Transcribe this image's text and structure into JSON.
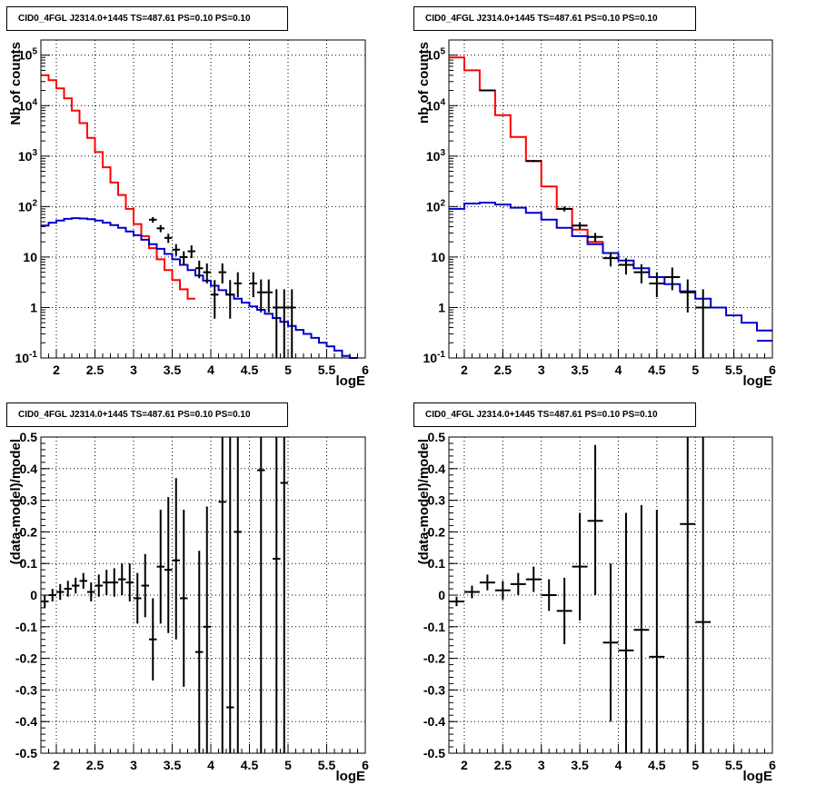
{
  "colors": {
    "data": "#000000",
    "total_model": "#ff0000",
    "background_model": "#0000cc",
    "grid": "#000000"
  },
  "chart_data": [
    {
      "type": "line",
      "panel": "top-left",
      "title": "CID0_4FGL J2314.0+1445 TS=487.61 PS=0.10 PS=0.10",
      "xlabel": "logE",
      "ylabel": "Nb of counts",
      "log_y": true,
      "grid": true,
      "xlim": [
        1.8,
        6.0
      ],
      "ylim": [
        0.1,
        200000
      ],
      "x_ticks": [
        2,
        2.5,
        3,
        3.5,
        4,
        4.5,
        5,
        5.5,
        6
      ],
      "x_tick_labels": [
        "2",
        "2.5",
        "3",
        "3.5",
        "4",
        "4.5",
        "5",
        "5.5",
        "6"
      ],
      "y_ticks": [
        0.1,
        1,
        10,
        100,
        1000,
        10000,
        100000
      ],
      "y_tick_labels": [
        "10^-1",
        "1",
        "10",
        "10^2",
        "10^3",
        "10^4",
        "10^5"
      ],
      "series": [
        {
          "kind": "step",
          "color": "#ff0000",
          "edges": [
            1.8,
            1.9,
            2.0,
            2.1,
            2.2,
            2.3,
            2.4,
            2.5,
            2.6,
            2.7,
            2.8,
            2.9,
            3.0,
            3.1,
            3.2,
            3.3,
            3.4,
            3.5,
            3.6,
            3.7,
            3.8
          ],
          "values": [
            40000,
            32000,
            22000,
            14000,
            8000,
            4500,
            2300,
            1200,
            600,
            300,
            170,
            90,
            45,
            26,
            15,
            9,
            5.5,
            3.5,
            2.3,
            1.5
          ]
        },
        {
          "kind": "step",
          "color": "#0000cc",
          "edges": [
            1.8,
            1.9,
            2.0,
            2.1,
            2.2,
            2.3,
            2.4,
            2.5,
            2.6,
            2.7,
            2.8,
            2.9,
            3.0,
            3.1,
            3.2,
            3.3,
            3.4,
            3.5,
            3.6,
            3.7,
            3.8,
            3.9,
            4.0,
            4.1,
            4.2,
            4.3,
            4.4,
            4.5,
            4.6,
            4.7,
            4.8,
            4.9,
            5.0,
            5.1,
            5.2,
            5.3,
            5.4,
            5.5,
            5.6,
            5.7,
            5.8,
            5.9
          ],
          "values": [
            42,
            48,
            53,
            57,
            59,
            58,
            56,
            53,
            48,
            43,
            38,
            32,
            27,
            22,
            18,
            14.5,
            11.5,
            9,
            7,
            5.5,
            4.3,
            3.4,
            2.7,
            2.2,
            1.8,
            1.5,
            1.25,
            1.05,
            0.9,
            0.75,
            0.62,
            0.52,
            0.43,
            0.36,
            0.3,
            0.25,
            0.2,
            0.17,
            0.14,
            0.11,
            0.09
          ]
        },
        {
          "kind": "points",
          "color": "#000000",
          "points": [
            {
              "x": 3.25,
              "y": 55,
              "ylo": 48,
              "yhi": 62,
              "xerr": 0.05
            },
            {
              "x": 3.35,
              "y": 37,
              "ylo": 31,
              "yhi": 43,
              "xerr": 0.05
            },
            {
              "x": 3.45,
              "y": 24,
              "ylo": 19,
              "yhi": 29,
              "xerr": 0.05
            },
            {
              "x": 3.55,
              "y": 14,
              "ylo": 10.5,
              "yhi": 18,
              "xerr": 0.05
            },
            {
              "x": 3.65,
              "y": 10,
              "ylo": 7,
              "yhi": 13,
              "xerr": 0.05
            },
            {
              "x": 3.75,
              "y": 13,
              "ylo": 9.5,
              "yhi": 17,
              "xerr": 0.05
            },
            {
              "x": 3.85,
              "y": 6,
              "ylo": 3.8,
              "yhi": 8.5,
              "xerr": 0.05
            },
            {
              "x": 3.95,
              "y": 5,
              "ylo": 3,
              "yhi": 7.5,
              "xerr": 0.05
            },
            {
              "x": 4.05,
              "y": 1.8,
              "ylo": 0.6,
              "yhi": 3.5,
              "xerr": 0.05
            },
            {
              "x": 4.15,
              "y": 5,
              "ylo": 3,
              "yhi": 7.5,
              "xerr": 0.05
            },
            {
              "x": 4.25,
              "y": 1.8,
              "ylo": 0.6,
              "yhi": 3.5,
              "xerr": 0.05
            },
            {
              "x": 4.35,
              "y": 3,
              "ylo": 1.6,
              "yhi": 5,
              "xerr": 0.05
            },
            {
              "x": 4.55,
              "y": 3,
              "ylo": 1.6,
              "yhi": 5,
              "xerr": 0.05
            },
            {
              "x": 4.65,
              "y": 2,
              "ylo": 0.8,
              "yhi": 3.6,
              "xerr": 0.05
            },
            {
              "x": 4.75,
              "y": 2,
              "ylo": 0.8,
              "yhi": 3.6,
              "xerr": 0.05
            },
            {
              "x": 4.85,
              "y": 1,
              "ylo": 0.1,
              "yhi": 2.3,
              "xerr": 0.05
            },
            {
              "x": 4.95,
              "y": 1,
              "ylo": 0.1,
              "yhi": 2.3,
              "xerr": 0.05
            },
            {
              "x": 5.05,
              "y": 1,
              "ylo": 0.1,
              "yhi": 2.3,
              "xerr": 0.05
            }
          ]
        }
      ]
    },
    {
      "type": "line",
      "panel": "top-right",
      "title": "CID0_4FGL J2314.0+1445 TS=487.61 PS=0.10 PS=0.10",
      "xlabel": "logE",
      "ylabel": "nb of counts",
      "log_y": true,
      "grid": true,
      "xlim": [
        1.8,
        6.0
      ],
      "ylim": [
        0.1,
        200000
      ],
      "x_ticks": [
        2,
        2.5,
        3,
        3.5,
        4,
        4.5,
        5,
        5.5,
        6
      ],
      "x_tick_labels": [
        "2",
        "2.5",
        "3",
        "3.5",
        "4",
        "4.5",
        "5",
        "5.5",
        "6"
      ],
      "y_ticks": [
        0.1,
        1,
        10,
        100,
        1000,
        10000,
        100000
      ],
      "y_tick_labels": [
        "10^-1",
        "1",
        "10",
        "10^2",
        "10^3",
        "10^4",
        "10^5"
      ],
      "series": [
        {
          "kind": "step",
          "color": "#ff0000",
          "edges": [
            1.8,
            2.0,
            2.2,
            2.4,
            2.6,
            2.8,
            3.0,
            3.2,
            3.4,
            3.6,
            3.8,
            4.0
          ],
          "values": [
            90000,
            50000,
            20000,
            6500,
            2400,
            800,
            250,
            90,
            35,
            20,
            12
          ]
        },
        {
          "kind": "step",
          "color": "#0000cc",
          "edges": [
            1.8,
            2.0,
            2.2,
            2.4,
            2.6,
            2.8,
            3.0,
            3.2,
            3.4,
            3.6,
            3.8,
            4.0,
            4.2,
            4.4,
            4.6,
            4.8,
            5.0,
            5.2,
            5.4,
            5.6,
            5.8,
            6.0
          ],
          "values": [
            90,
            115,
            120,
            110,
            95,
            75,
            55,
            38,
            26,
            18,
            12,
            8.5,
            6,
            4,
            2.9,
            2.1,
            1.5,
            1.0,
            0.7,
            0.5,
            0.35
          ]
        },
        {
          "kind": "step",
          "color": "#0000cc",
          "edges": [
            5.8,
            6.0
          ],
          "values": [
            0.22
          ]
        },
        {
          "kind": "points",
          "color": "#000000",
          "points": [
            {
              "x": 2.3,
              "y": 20000,
              "ylo": 19500,
              "yhi": 20500,
              "xerr": 0.1
            },
            {
              "x": 2.9,
              "y": 800,
              "ylo": 760,
              "yhi": 840,
              "xerr": 0.1
            },
            {
              "x": 3.3,
              "y": 90,
              "ylo": 80,
              "yhi": 100,
              "xerr": 0.1
            },
            {
              "x": 3.5,
              "y": 42,
              "ylo": 36,
              "yhi": 48,
              "xerr": 0.1
            },
            {
              "x": 3.7,
              "y": 25,
              "ylo": 20,
              "yhi": 30,
              "xerr": 0.1
            },
            {
              "x": 3.9,
              "y": 9.5,
              "ylo": 6.5,
              "yhi": 12.5,
              "xerr": 0.1
            },
            {
              "x": 4.1,
              "y": 7,
              "ylo": 4.5,
              "yhi": 9.5,
              "xerr": 0.1
            },
            {
              "x": 4.3,
              "y": 5,
              "ylo": 3,
              "yhi": 7.2,
              "xerr": 0.1
            },
            {
              "x": 4.5,
              "y": 3,
              "ylo": 1.6,
              "yhi": 5,
              "xerr": 0.1
            },
            {
              "x": 4.7,
              "y": 4,
              "ylo": 2.2,
              "yhi": 6.2,
              "xerr": 0.1
            },
            {
              "x": 4.9,
              "y": 2,
              "ylo": 0.8,
              "yhi": 3.6,
              "xerr": 0.1
            },
            {
              "x": 5.1,
              "y": 1,
              "ylo": 0.1,
              "yhi": 2.3,
              "xerr": 0.1
            }
          ]
        }
      ]
    },
    {
      "type": "scatter",
      "panel": "bottom-left",
      "title": "CID0_4FGL J2314.0+1445 TS=487.61 PS=0.10 PS=0.10",
      "xlabel": "logE",
      "ylabel": "(data-model)/model",
      "log_y": false,
      "grid": true,
      "xlim": [
        1.8,
        6.0
      ],
      "ylim": [
        -0.5,
        0.5
      ],
      "x_ticks": [
        2,
        2.5,
        3,
        3.5,
        4,
        4.5,
        5,
        5.5,
        6
      ],
      "x_tick_labels": [
        "2",
        "2.5",
        "3",
        "3.5",
        "4",
        "4.5",
        "5",
        "5.5",
        "6"
      ],
      "y_ticks": [
        -0.5,
        -0.4,
        -0.3,
        -0.2,
        -0.1,
        0,
        0.1,
        0.2,
        0.3,
        0.4,
        0.5
      ],
      "y_tick_labels": [
        "-0.5",
        "-0.4",
        "-0.3",
        "-0.2",
        "-0.1",
        "0",
        "0.1",
        "0.2",
        "0.3",
        "0.4",
        "0.5"
      ],
      "series": [
        {
          "kind": "points",
          "color": "#000000",
          "points": [
            {
              "x": 1.85,
              "y": -0.02,
              "ylo": -0.04,
              "yhi": 0.0,
              "xerr": 0.05
            },
            {
              "x": 1.95,
              "y": 0.0,
              "ylo": -0.02,
              "yhi": 0.02,
              "xerr": 0.05
            },
            {
              "x": 2.05,
              "y": 0.01,
              "ylo": -0.015,
              "yhi": 0.035,
              "xerr": 0.05
            },
            {
              "x": 2.15,
              "y": 0.02,
              "ylo": -0.005,
              "yhi": 0.045,
              "xerr": 0.05
            },
            {
              "x": 2.25,
              "y": 0.03,
              "ylo": 0.005,
              "yhi": 0.055,
              "xerr": 0.05
            },
            {
              "x": 2.35,
              "y": 0.045,
              "ylo": 0.02,
              "yhi": 0.07,
              "xerr": 0.05
            },
            {
              "x": 2.45,
              "y": 0.01,
              "ylo": -0.02,
              "yhi": 0.04,
              "xerr": 0.05
            },
            {
              "x": 2.55,
              "y": 0.03,
              "ylo": -0.005,
              "yhi": 0.065,
              "xerr": 0.05
            },
            {
              "x": 2.65,
              "y": 0.04,
              "ylo": 0.0,
              "yhi": 0.08,
              "xerr": 0.05
            },
            {
              "x": 2.75,
              "y": 0.04,
              "ylo": -0.005,
              "yhi": 0.085,
              "xerr": 0.05
            },
            {
              "x": 2.85,
              "y": 0.05,
              "ylo": 0.0,
              "yhi": 0.1,
              "xerr": 0.05
            },
            {
              "x": 2.95,
              "y": 0.04,
              "ylo": -0.02,
              "yhi": 0.1,
              "xerr": 0.05
            },
            {
              "x": 3.05,
              "y": -0.01,
              "ylo": -0.09,
              "yhi": 0.07,
              "xerr": 0.05
            },
            {
              "x": 3.15,
              "y": 0.03,
              "ylo": -0.07,
              "yhi": 0.13,
              "xerr": 0.05
            },
            {
              "x": 3.25,
              "y": -0.14,
              "ylo": -0.27,
              "yhi": -0.01,
              "xerr": 0.05
            },
            {
              "x": 3.35,
              "y": 0.09,
              "ylo": -0.09,
              "yhi": 0.27,
              "xerr": 0.05
            },
            {
              "x": 3.45,
              "y": 0.08,
              "ylo": -0.12,
              "yhi": 0.31,
              "xerr": 0.05
            },
            {
              "x": 3.55,
              "y": 0.11,
              "ylo": -0.14,
              "yhi": 0.37,
              "xerr": 0.05
            },
            {
              "x": 3.65,
              "y": -0.01,
              "ylo": -0.29,
              "yhi": 0.27,
              "xerr": 0.05
            },
            {
              "x": 3.85,
              "y": -0.18,
              "ylo": -0.5,
              "yhi": 0.14,
              "xerr": 0.05
            },
            {
              "x": 3.95,
              "y": -0.1,
              "ylo": -0.5,
              "yhi": 0.28,
              "xerr": 0.05
            },
            {
              "x": 4.15,
              "y": 0.295,
              "ylo": -0.5,
              "yhi": 0.5,
              "xerr": 0.05
            },
            {
              "x": 4.25,
              "y": -0.355,
              "ylo": -0.5,
              "yhi": 0.5,
              "xerr": 0.05
            },
            {
              "x": 4.35,
              "y": 0.2,
              "ylo": -0.5,
              "yhi": 0.5,
              "xerr": 0.05
            },
            {
              "x": 4.65,
              "y": 0.395,
              "ylo": -0.5,
              "yhi": 0.5,
              "xerr": 0.05
            },
            {
              "x": 4.85,
              "y": 0.115,
              "ylo": -0.5,
              "yhi": 0.5,
              "xerr": 0.05
            },
            {
              "x": 4.95,
              "y": 0.355,
              "ylo": -0.5,
              "yhi": 0.5,
              "xerr": 0.05
            }
          ]
        }
      ]
    },
    {
      "type": "scatter",
      "panel": "bottom-right",
      "title": "CID0_4FGL J2314.0+1445 TS=487.61 PS=0.10 PS=0.10",
      "xlabel": "logE",
      "ylabel": "(data-model)/model",
      "log_y": false,
      "grid": true,
      "xlim": [
        1.8,
        6.0
      ],
      "ylim": [
        -0.5,
        0.5
      ],
      "x_ticks": [
        2,
        2.5,
        3,
        3.5,
        4,
        4.5,
        5,
        5.5,
        6
      ],
      "x_tick_labels": [
        "2",
        "2.5",
        "3",
        "3.5",
        "4",
        "4.5",
        "5",
        "5.5",
        "6"
      ],
      "y_ticks": [
        -0.5,
        -0.4,
        -0.3,
        -0.2,
        -0.1,
        0,
        0.1,
        0.2,
        0.3,
        0.4,
        0.5
      ],
      "y_tick_labels": [
        "-0.5",
        "-0.4",
        "-0.3",
        "-0.2",
        "-0.1",
        "0",
        "0.1",
        "0.2",
        "0.3",
        "0.4",
        "0.5"
      ],
      "series": [
        {
          "kind": "points",
          "color": "#000000",
          "points": [
            {
              "x": 1.9,
              "y": -0.02,
              "ylo": -0.035,
              "yhi": -0.005,
              "xerr": 0.1
            },
            {
              "x": 2.1,
              "y": 0.01,
              "ylo": -0.01,
              "yhi": 0.03,
              "xerr": 0.1
            },
            {
              "x": 2.3,
              "y": 0.04,
              "ylo": 0.015,
              "yhi": 0.065,
              "xerr": 0.1
            },
            {
              "x": 2.5,
              "y": 0.015,
              "ylo": -0.015,
              "yhi": 0.045,
              "xerr": 0.1
            },
            {
              "x": 2.7,
              "y": 0.035,
              "ylo": 0.0,
              "yhi": 0.07,
              "xerr": 0.1
            },
            {
              "x": 2.9,
              "y": 0.05,
              "ylo": 0.01,
              "yhi": 0.09,
              "xerr": 0.1
            },
            {
              "x": 3.1,
              "y": 0.0,
              "ylo": -0.05,
              "yhi": 0.05,
              "xerr": 0.1
            },
            {
              "x": 3.3,
              "y": -0.05,
              "ylo": -0.155,
              "yhi": 0.055,
              "xerr": 0.1
            },
            {
              "x": 3.5,
              "y": 0.09,
              "ylo": -0.08,
              "yhi": 0.26,
              "xerr": 0.1
            },
            {
              "x": 3.7,
              "y": 0.235,
              "ylo": 0.0,
              "yhi": 0.475,
              "xerr": 0.1
            },
            {
              "x": 3.9,
              "y": -0.15,
              "ylo": -0.4,
              "yhi": 0.1,
              "xerr": 0.1
            },
            {
              "x": 4.1,
              "y": -0.175,
              "ylo": -0.5,
              "yhi": 0.26,
              "xerr": 0.1
            },
            {
              "x": 4.3,
              "y": -0.11,
              "ylo": -0.5,
              "yhi": 0.285,
              "xerr": 0.1
            },
            {
              "x": 4.5,
              "y": -0.195,
              "ylo": -0.5,
              "yhi": 0.27,
              "xerr": 0.1
            },
            {
              "x": 4.9,
              "y": 0.225,
              "ylo": -0.5,
              "yhi": 0.5,
              "xerr": 0.1
            },
            {
              "x": 5.1,
              "y": -0.085,
              "ylo": -0.5,
              "yhi": 0.5,
              "xerr": 0.1
            }
          ]
        }
      ]
    }
  ]
}
